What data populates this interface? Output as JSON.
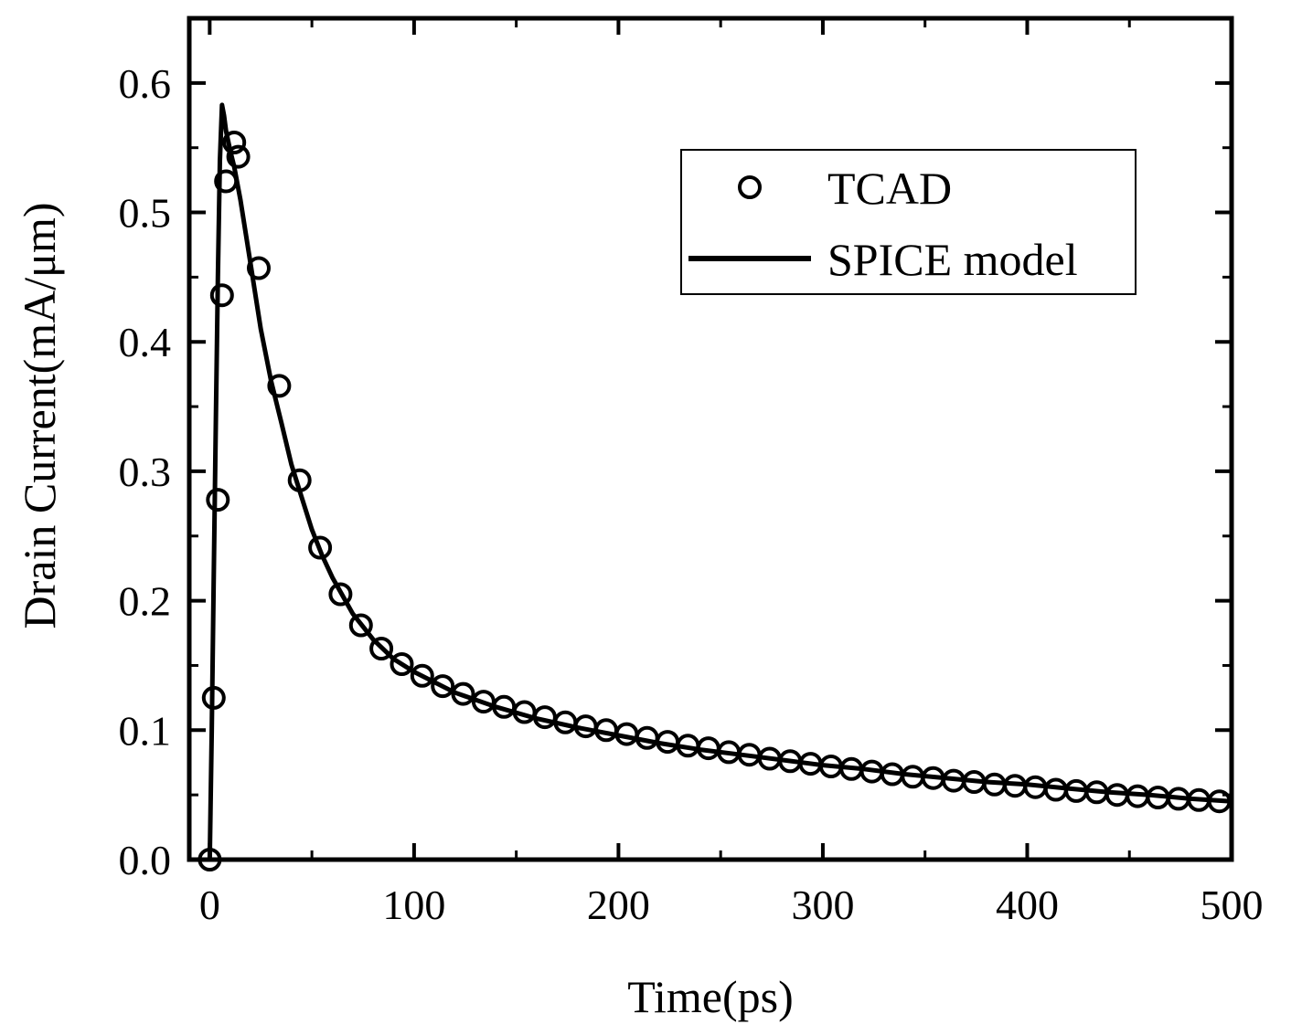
{
  "chart_data": {
    "type": "scatter",
    "title": "",
    "xlabel": "Time(ps)",
    "ylabel": "Drain Current(mA/μm)",
    "xlim": [
      -10,
      500
    ],
    "ylim": [
      0,
      0.65
    ],
    "xticks": [
      0,
      100,
      200,
      300,
      400,
      500
    ],
    "xtick_labels": [
      "0",
      "100",
      "200",
      "300",
      "400",
      "500"
    ],
    "yticks": [
      0.0,
      0.1,
      0.2,
      0.3,
      0.4,
      0.5,
      0.6
    ],
    "ytick_labels": [
      "0.0",
      "0.1",
      "0.2",
      "0.3",
      "0.4",
      "0.5",
      "0.6"
    ],
    "legend_position": "top-right",
    "series": [
      {
        "name": "TCAD",
        "style": "open-circle",
        "x": [
          0,
          2,
          4,
          6,
          8,
          12,
          14,
          24,
          34,
          44,
          54,
          64,
          74,
          84,
          94,
          104,
          114,
          124,
          134,
          144,
          154,
          164,
          174,
          184,
          194,
          204,
          214,
          224,
          234,
          244,
          254,
          264,
          274,
          284,
          294,
          304,
          314,
          324,
          334,
          344,
          354,
          364,
          374,
          384,
          394,
          404,
          414,
          424,
          434,
          444,
          454,
          464,
          474,
          484,
          494
        ],
        "y": [
          0.0,
          0.125,
          0.278,
          0.436,
          0.524,
          0.554,
          0.543,
          0.457,
          0.366,
          0.293,
          0.241,
          0.205,
          0.181,
          0.163,
          0.151,
          0.142,
          0.134,
          0.128,
          0.122,
          0.118,
          0.114,
          0.11,
          0.106,
          0.103,
          0.1,
          0.097,
          0.094,
          0.091,
          0.088,
          0.086,
          0.083,
          0.081,
          0.078,
          0.076,
          0.074,
          0.072,
          0.07,
          0.068,
          0.066,
          0.064,
          0.063,
          0.061,
          0.06,
          0.058,
          0.057,
          0.056,
          0.054,
          0.053,
          0.052,
          0.05,
          0.049,
          0.048,
          0.047,
          0.046,
          0.045
        ]
      },
      {
        "name": "SPICE model",
        "style": "solid-line",
        "x": [
          0,
          1,
          2,
          3,
          4,
          5,
          6,
          7,
          8,
          10,
          12,
          15,
          20,
          25,
          30,
          35,
          40,
          45,
          50,
          55,
          60,
          70,
          80,
          90,
          100,
          120,
          140,
          160,
          180,
          200,
          220,
          240,
          260,
          280,
          300,
          320,
          340,
          360,
          380,
          400,
          420,
          440,
          460,
          480,
          500
        ],
        "y": [
          0.0,
          0.1,
          0.22,
          0.34,
          0.45,
          0.54,
          0.583,
          0.575,
          0.563,
          0.548,
          0.535,
          0.51,
          0.46,
          0.41,
          0.37,
          0.338,
          0.305,
          0.28,
          0.255,
          0.235,
          0.218,
          0.19,
          0.17,
          0.155,
          0.145,
          0.129,
          0.118,
          0.109,
          0.102,
          0.096,
          0.09,
          0.085,
          0.081,
          0.077,
          0.073,
          0.07,
          0.066,
          0.063,
          0.06,
          0.058,
          0.055,
          0.052,
          0.05,
          0.047,
          0.045
        ]
      }
    ]
  }
}
